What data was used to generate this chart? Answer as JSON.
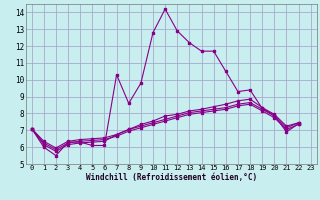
{
  "background_color": "#c8eef0",
  "grid_color": "#aaaacc",
  "line_color": "#880088",
  "xlim": [
    -0.5,
    23.5
  ],
  "ylim": [
    5,
    14.5
  ],
  "xlabel": "Windchill (Refroidissement éolien,°C)",
  "yticks": [
    5,
    6,
    7,
    8,
    9,
    10,
    11,
    12,
    13,
    14
  ],
  "xticks": [
    0,
    1,
    2,
    3,
    4,
    5,
    6,
    7,
    8,
    9,
    10,
    11,
    12,
    13,
    14,
    15,
    16,
    17,
    18,
    19,
    20,
    21,
    22,
    23
  ],
  "series": [
    [
      7.1,
      6.0,
      5.5,
      6.3,
      6.3,
      6.1,
      6.1,
      10.3,
      8.6,
      9.8,
      12.8,
      14.2,
      12.9,
      12.2,
      11.7,
      11.7,
      10.5,
      9.3,
      9.4,
      8.3,
      7.9,
      6.9,
      7.4,
      null
    ],
    [
      7.1,
      6.15,
      5.75,
      6.15,
      6.25,
      6.3,
      6.35,
      6.75,
      7.05,
      7.35,
      7.55,
      7.85,
      7.95,
      8.15,
      8.25,
      8.4,
      8.55,
      8.75,
      8.85,
      8.35,
      7.95,
      7.25,
      7.45,
      null
    ],
    [
      7.1,
      6.25,
      5.85,
      6.25,
      6.35,
      6.4,
      6.45,
      6.65,
      6.95,
      7.15,
      7.35,
      7.55,
      7.75,
      7.95,
      8.05,
      8.15,
      8.25,
      8.45,
      8.55,
      8.15,
      7.75,
      7.05,
      7.35,
      null
    ],
    [
      7.1,
      6.35,
      5.95,
      6.35,
      6.45,
      6.5,
      6.55,
      6.75,
      7.05,
      7.25,
      7.45,
      7.65,
      7.85,
      8.05,
      8.15,
      8.25,
      8.35,
      8.55,
      8.65,
      8.25,
      7.85,
      7.15,
      7.45,
      null
    ]
  ]
}
